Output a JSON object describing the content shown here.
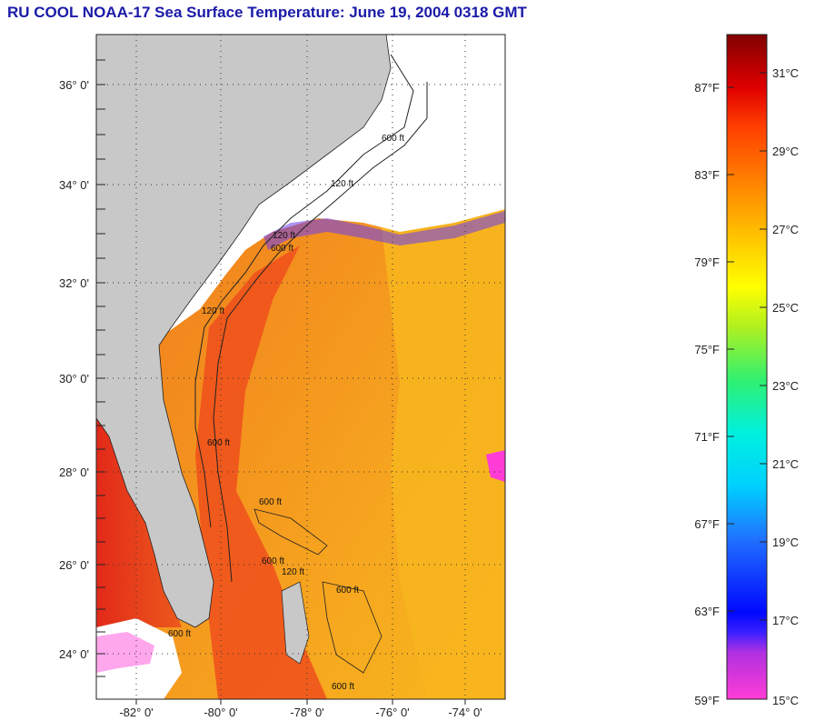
{
  "title": "RU COOL  NOAA-17  Sea Surface Temperature:  June 19, 2004 0318 GMT",
  "map": {
    "lat_labels": [
      "36° 0'",
      "34° 0'",
      "32° 0'",
      "30° 0'",
      "28° 0'",
      "26° 0'",
      "24° 0'"
    ],
    "lon_labels": [
      "-82° 0'",
      "-80° 0'",
      "-78° 0'",
      "-76° 0'",
      "-74° 0'"
    ],
    "contour_labels": [
      "600 ft",
      "120 ft",
      "120 ft",
      "600 ft",
      "120 ft",
      "600 ft",
      "600 ft",
      "600 ft",
      "120 ft",
      "600 ft",
      "600 ft",
      "600 ft"
    ],
    "colors": {
      "land": "#c8c8c8",
      "cloud": "#ffffff",
      "warm_water": "#f28a1e",
      "hot_water": "#e8401c",
      "cool_water": "#f7b91d"
    }
  },
  "colorbar": {
    "fahrenheit_labels": [
      "87°F",
      "83°F",
      "79°F",
      "75°F",
      "71°F",
      "67°F",
      "63°F",
      "59°F"
    ],
    "celsius_labels": [
      "31°C",
      "29°C",
      "27°C",
      "25°C",
      "23°C",
      "21°C",
      "19°C",
      "17°C",
      "15°C"
    ],
    "range_c": [
      15,
      32
    ],
    "range_f": [
      59,
      89.6
    ]
  }
}
